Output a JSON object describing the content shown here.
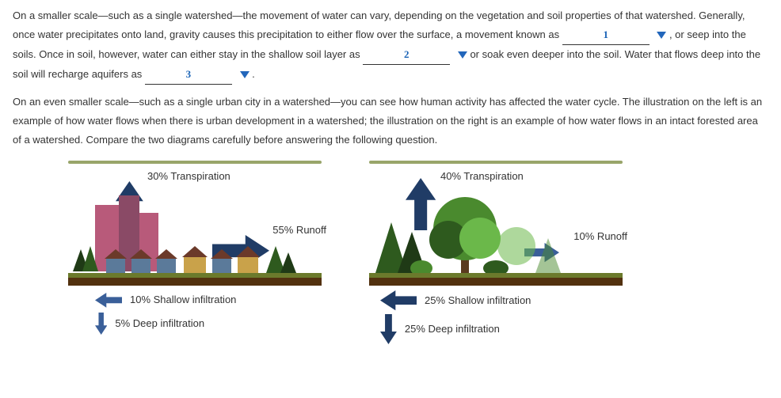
{
  "text": {
    "p1a": "On a smaller scale—such as a single watershed—the movement of water can vary, depending on the vegetation and soil properties of that watershed. Generally, once water precipitates onto land, gravity causes this precipitation to either flow over the surface, a movement known as ",
    "p1b": " , or seep into the soils. Once in soil, however, water can either stay in the shallow soil layer as ",
    "p1c": " or soak even deeper into the soil. Water that flows deep into the soil will recharge aquifers as ",
    "p1d": " .",
    "p2": "On an even smaller scale—such as a single urban city in a watershed—you can see how human activity has affected the water cycle. The illustration on the left is an example of how water flows when there is urban development in a watershed; the illustration on the right is an example of how water flows in an intact forested area of a watershed. Compare the two diagrams carefully before answering the following question."
  },
  "blanks": {
    "b1": "1",
    "b2": "2",
    "b3": "3"
  },
  "colors": {
    "text": "#333333",
    "handwriting": "#1a63b6",
    "caret": "#2266bb",
    "arrowDark": "#203c66",
    "arrowLight": "#3a5f99",
    "bar": "#99a56a",
    "groundTop": "#6b7a2c",
    "groundBottom": "#52310f",
    "buildingA": "#b85a7a",
    "buildingB": "#8a4a66",
    "houseA": "#5b7a9a",
    "houseB": "#c9a24a",
    "roof": "#6b3a2a",
    "treeDark": "#2e5a1e",
    "treeMid": "#4a8a2e",
    "treeLight": "#6bb84a",
    "trunk": "#5a3a1e",
    "pineDark": "#1f3a16"
  },
  "diagrams": {
    "urban": {
      "transpiration": "30% Transpiration",
      "runoff": "55% Runoff",
      "shallow": "10% Shallow infiltration",
      "deep": "5% Deep infiltration",
      "arrow_up_size": 60,
      "arrow_right_size": 72,
      "arrow_left_size": 34,
      "arrow_down_size": 28
    },
    "forest": {
      "transpiration": "40% Transpiration",
      "runoff": "10% Runoff",
      "shallow": "25% Shallow infiltration",
      "deep": "25% Deep infiltration",
      "arrow_up_size": 66,
      "arrow_right_size": 44,
      "arrow_left_size": 46,
      "arrow_down_size": 38
    }
  }
}
